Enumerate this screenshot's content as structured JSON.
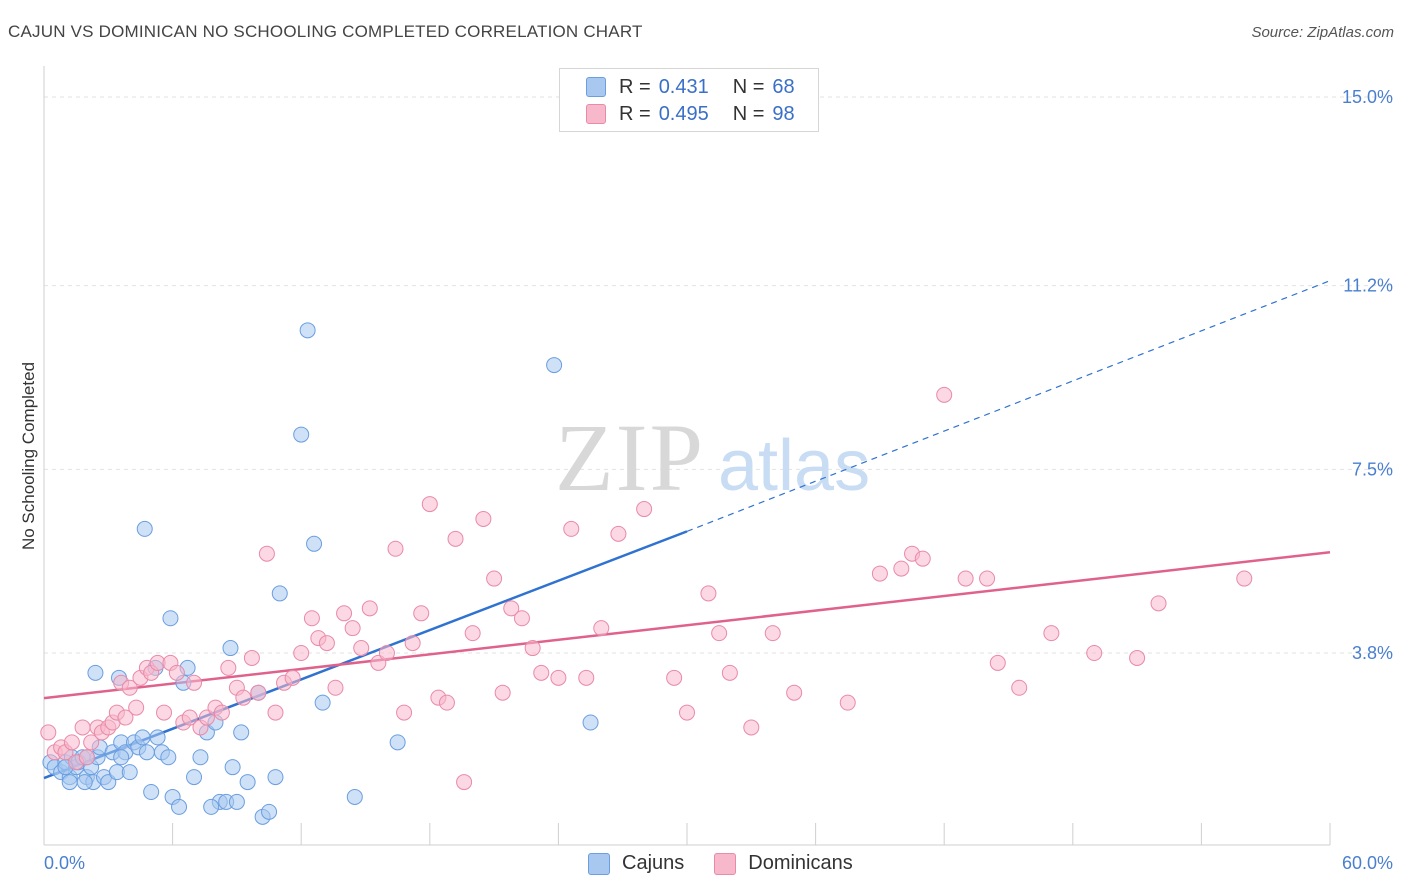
{
  "title": "CAJUN VS DOMINICAN NO SCHOOLING COMPLETED CORRELATION CHART",
  "source": "Source: ZipAtlas.com",
  "watermark": {
    "zip": "ZIP",
    "atlas": "atlas"
  },
  "legend": {
    "rows": [
      {
        "r_label": "R =",
        "r_value": "0.431",
        "n_label": "N =",
        "n_value": "68",
        "color": "#a8c8f0"
      },
      {
        "r_label": "R =",
        "r_value": "0.495",
        "n_label": "N =",
        "n_value": "98",
        "color": "#f7b8cc"
      }
    ]
  },
  "bottom_legend": {
    "cajuns": "Cajuns",
    "dominicans": "Dominicans"
  },
  "colors": {
    "cajun_fill": "#a8c8f0",
    "cajun_stroke": "#6a9ee0",
    "cajun_line": "#2f72d0",
    "dominican_fill": "#f7b8cc",
    "dominican_stroke": "#e98aa8",
    "dominican_line": "#e0628c",
    "grid": "#e2e2e2",
    "axis_text": "#4a7fcf"
  },
  "chart_data": {
    "type": "scatter",
    "title": "CAJUN VS DOMINICAN NO SCHOOLING COMPLETED CORRELATION CHART",
    "xlabel": "",
    "ylabel": "No Schooling Completed",
    "xlim": [
      0,
      60
    ],
    "ylim": [
      0,
      15.5
    ],
    "x_tick_labels": [
      "0.0%",
      "60.0%"
    ],
    "y_ticks": [
      3.8,
      7.5,
      11.2,
      15.0
    ],
    "y_tick_labels": [
      "3.8%",
      "7.5%",
      "11.2%",
      "15.0%"
    ],
    "grid": true,
    "legend_position": "top-center",
    "series": [
      {
        "name": "Cajuns",
        "R": 0.431,
        "N": 68,
        "points": [
          [
            0.3,
            1.6
          ],
          [
            0.5,
            1.5
          ],
          [
            0.8,
            1.4
          ],
          [
            1.0,
            1.6
          ],
          [
            1.2,
            1.3
          ],
          [
            1.3,
            1.7
          ],
          [
            1.5,
            1.5
          ],
          [
            1.6,
            1.6
          ],
          [
            1.8,
            1.7
          ],
          [
            2.0,
            1.3
          ],
          [
            2.2,
            1.5
          ],
          [
            2.3,
            1.2
          ],
          [
            2.5,
            1.7
          ],
          [
            2.6,
            1.9
          ],
          [
            2.8,
            1.3
          ],
          [
            3.0,
            1.2
          ],
          [
            3.2,
            1.8
          ],
          [
            3.4,
            1.4
          ],
          [
            3.6,
            2.0
          ],
          [
            3.8,
            1.8
          ],
          [
            4.0,
            1.4
          ],
          [
            4.2,
            2.0
          ],
          [
            4.4,
            1.9
          ],
          [
            4.6,
            2.1
          ],
          [
            4.8,
            1.8
          ],
          [
            5.0,
            1.0
          ],
          [
            5.3,
            2.1
          ],
          [
            5.5,
            1.8
          ],
          [
            5.8,
            1.7
          ],
          [
            6.0,
            0.9
          ],
          [
            6.3,
            0.7
          ],
          [
            6.5,
            3.2
          ],
          [
            6.7,
            3.5
          ],
          [
            7.0,
            1.3
          ],
          [
            7.3,
            1.7
          ],
          [
            7.6,
            2.2
          ],
          [
            8.0,
            2.4
          ],
          [
            8.2,
            0.8
          ],
          [
            8.5,
            0.8
          ],
          [
            8.8,
            1.5
          ],
          [
            9.0,
            0.8
          ],
          [
            9.2,
            2.2
          ],
          [
            9.5,
            1.2
          ],
          [
            10.0,
            3.0
          ],
          [
            10.2,
            0.5
          ],
          [
            10.5,
            0.6
          ],
          [
            10.8,
            1.3
          ],
          [
            11.0,
            5.0
          ],
          [
            12.3,
            10.3
          ],
          [
            12.0,
            8.2
          ],
          [
            12.6,
            6.0
          ],
          [
            13.0,
            2.8
          ],
          [
            14.5,
            0.9
          ],
          [
            16.5,
            2.0
          ],
          [
            23.8,
            9.6
          ],
          [
            25.5,
            2.4
          ],
          [
            4.7,
            6.3
          ],
          [
            5.9,
            4.5
          ],
          [
            8.7,
            3.9
          ],
          [
            2.4,
            3.4
          ],
          [
            1.0,
            1.5
          ],
          [
            1.2,
            1.2
          ],
          [
            2.0,
            1.7
          ],
          [
            3.6,
            1.7
          ],
          [
            3.5,
            3.3
          ],
          [
            5.2,
            3.5
          ],
          [
            7.8,
            0.7
          ],
          [
            1.9,
            1.2
          ]
        ],
        "trend": {
          "x": [
            0,
            30
          ],
          "y": [
            1.28,
            6.25
          ],
          "dashed_extension_to": [
            60,
            11.3
          ]
        }
      },
      {
        "name": "Dominicans",
        "R": 0.495,
        "N": 98,
        "points": [
          [
            0.2,
            2.2
          ],
          [
            0.5,
            1.8
          ],
          [
            0.8,
            1.9
          ],
          [
            1.0,
            1.8
          ],
          [
            1.3,
            2.0
          ],
          [
            1.5,
            1.6
          ],
          [
            1.8,
            2.3
          ],
          [
            2.0,
            1.7
          ],
          [
            2.2,
            2.0
          ],
          [
            2.5,
            2.3
          ],
          [
            2.7,
            2.2
          ],
          [
            3.0,
            2.3
          ],
          [
            3.2,
            2.4
          ],
          [
            3.4,
            2.6
          ],
          [
            3.6,
            3.2
          ],
          [
            3.8,
            2.5
          ],
          [
            4.0,
            3.1
          ],
          [
            4.3,
            2.7
          ],
          [
            4.5,
            3.3
          ],
          [
            4.8,
            3.5
          ],
          [
            5.0,
            3.4
          ],
          [
            5.3,
            3.6
          ],
          [
            5.6,
            2.6
          ],
          [
            5.9,
            3.6
          ],
          [
            6.2,
            3.4
          ],
          [
            6.5,
            2.4
          ],
          [
            6.8,
            2.5
          ],
          [
            7.0,
            3.2
          ],
          [
            7.3,
            2.3
          ],
          [
            7.6,
            2.5
          ],
          [
            8.0,
            2.7
          ],
          [
            8.3,
            2.6
          ],
          [
            8.6,
            3.5
          ],
          [
            9.0,
            3.1
          ],
          [
            9.3,
            2.9
          ],
          [
            9.7,
            3.7
          ],
          [
            10.0,
            3.0
          ],
          [
            10.4,
            5.8
          ],
          [
            10.8,
            2.6
          ],
          [
            11.2,
            3.2
          ],
          [
            11.6,
            3.3
          ],
          [
            12.0,
            3.8
          ],
          [
            12.5,
            4.5
          ],
          [
            12.8,
            4.1
          ],
          [
            13.2,
            4.0
          ],
          [
            13.6,
            3.1
          ],
          [
            14.0,
            4.6
          ],
          [
            14.4,
            4.3
          ],
          [
            14.8,
            3.9
          ],
          [
            15.2,
            4.7
          ],
          [
            15.6,
            3.6
          ],
          [
            16.0,
            3.8
          ],
          [
            16.4,
            5.9
          ],
          [
            16.8,
            2.6
          ],
          [
            17.2,
            4.0
          ],
          [
            17.6,
            4.6
          ],
          [
            18.0,
            6.8
          ],
          [
            18.4,
            2.9
          ],
          [
            18.8,
            2.8
          ],
          [
            19.2,
            6.1
          ],
          [
            19.6,
            1.2
          ],
          [
            20.0,
            4.2
          ],
          [
            20.5,
            6.5
          ],
          [
            21.0,
            5.3
          ],
          [
            21.4,
            3.0
          ],
          [
            21.8,
            4.7
          ],
          [
            22.3,
            4.5
          ],
          [
            22.8,
            3.9
          ],
          [
            23.2,
            3.4
          ],
          [
            24.0,
            3.3
          ],
          [
            24.6,
            6.3
          ],
          [
            25.3,
            3.3
          ],
          [
            26.0,
            4.3
          ],
          [
            26.8,
            6.2
          ],
          [
            28.0,
            6.7
          ],
          [
            29.4,
            3.3
          ],
          [
            30.0,
            2.6
          ],
          [
            31.0,
            5.0
          ],
          [
            31.5,
            4.2
          ],
          [
            32.0,
            3.4
          ],
          [
            33.0,
            2.3
          ],
          [
            34.0,
            4.2
          ],
          [
            35.0,
            3.0
          ],
          [
            37.5,
            2.8
          ],
          [
            39.0,
            5.4
          ],
          [
            40.0,
            5.5
          ],
          [
            40.5,
            5.8
          ],
          [
            41.0,
            5.7
          ],
          [
            42.0,
            9.0
          ],
          [
            43.0,
            5.3
          ],
          [
            44.0,
            5.3
          ],
          [
            44.5,
            3.6
          ],
          [
            45.5,
            3.1
          ],
          [
            47.0,
            4.2
          ],
          [
            49.0,
            3.8
          ],
          [
            51.0,
            3.7
          ],
          [
            52.0,
            4.8
          ],
          [
            56.0,
            5.3
          ]
        ],
        "trend": {
          "x": [
            0,
            60
          ],
          "y": [
            2.89,
            5.83
          ]
        }
      }
    ]
  }
}
